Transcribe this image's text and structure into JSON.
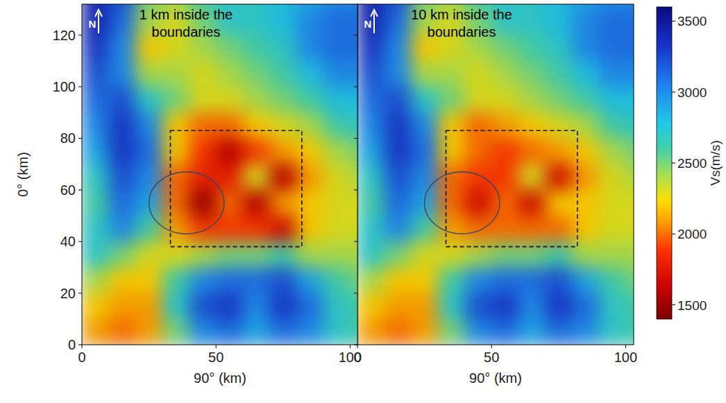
{
  "chart_data": [
    {
      "type": "heatmap",
      "title": "1 km inside the boundaries",
      "xlabel": "90° (km)",
      "ylabel": "0° (km)",
      "north_label": "N",
      "xlim": [
        0,
        103
      ],
      "ylim": [
        0,
        132
      ],
      "xticks": [
        0,
        50,
        100
      ],
      "yticks": [
        0,
        20,
        40,
        60,
        80,
        100,
        120
      ],
      "x": [
        5,
        15,
        25,
        35,
        45,
        55,
        65,
        75,
        85,
        95,
        105
      ],
      "y": [
        135,
        125,
        115,
        105,
        95,
        85,
        75,
        65,
        55,
        45,
        35,
        25,
        15,
        5
      ],
      "cells": [
        [
          3400,
          3200,
          2500,
          2400,
          2600,
          2700,
          2700,
          2800,
          2900,
          3000,
          3000
        ],
        [
          3400,
          3100,
          2400,
          2300,
          2500,
          2700,
          2700,
          2800,
          3000,
          3100,
          3100
        ],
        [
          3300,
          3000,
          2200,
          2300,
          2400,
          2500,
          2600,
          2700,
          3000,
          3100,
          3100
        ],
        [
          3200,
          3000,
          2400,
          2400,
          2300,
          2400,
          2500,
          2600,
          2800,
          3000,
          3000
        ],
        [
          3100,
          3200,
          2700,
          2500,
          2300,
          2300,
          2400,
          2500,
          2600,
          2800,
          2800
        ],
        [
          3000,
          3300,
          3000,
          2200,
          2000,
          2000,
          2200,
          2300,
          2400,
          2600,
          2700
        ],
        [
          2900,
          3300,
          3100,
          2200,
          1900,
          1600,
          1900,
          2100,
          2200,
          2400,
          2500
        ],
        [
          2700,
          3200,
          3000,
          2000,
          1800,
          1800,
          2300,
          1600,
          2100,
          2300,
          2400
        ],
        [
          2600,
          3100,
          2900,
          2000,
          1500,
          2000,
          1600,
          2100,
          2200,
          2300,
          2300
        ],
        [
          2700,
          3000,
          2600,
          2100,
          1900,
          1900,
          1900,
          1700,
          2200,
          2300,
          2300
        ],
        [
          2700,
          2500,
          2300,
          2300,
          2400,
          2500,
          2500,
          2600,
          2400,
          2400,
          2400
        ],
        [
          2400,
          2200,
          2200,
          2600,
          3000,
          3100,
          3100,
          3200,
          2900,
          2600,
          2500
        ],
        [
          2200,
          2100,
          2100,
          2700,
          3200,
          3300,
          3000,
          3300,
          3100,
          2700,
          2600
        ],
        [
          2100,
          2000,
          2100,
          2500,
          3000,
          3100,
          2900,
          3100,
          3000,
          2700,
          2600
        ]
      ],
      "box": {
        "x": [
          33,
          82
        ],
        "y": [
          38,
          83
        ]
      },
      "ellipse": {
        "cx": 39,
        "cy": 55,
        "rx": 14,
        "ry": 12
      }
    },
    {
      "type": "heatmap",
      "title": "10 km inside the boundaries",
      "xlabel": "90° (km)",
      "north_label": "N",
      "tick_labels": "x",
      "xlim": [
        0,
        103
      ],
      "ylim": [
        0,
        132
      ],
      "xticks": [
        0,
        50,
        100
      ],
      "yticks": [
        0,
        20,
        40,
        60,
        80,
        100,
        120
      ],
      "x": [
        5,
        15,
        25,
        35,
        45,
        55,
        65,
        75,
        85,
        95,
        105
      ],
      "y": [
        135,
        125,
        115,
        105,
        95,
        85,
        75,
        65,
        55,
        45,
        35,
        25,
        15,
        5
      ],
      "cells": [
        [
          3400,
          3200,
          2500,
          2400,
          2600,
          2700,
          2700,
          2800,
          2900,
          3000,
          3000
        ],
        [
          3400,
          3100,
          2400,
          2300,
          2500,
          2700,
          2700,
          2800,
          3000,
          3100,
          3100
        ],
        [
          3300,
          3000,
          2200,
          2300,
          2400,
          2500,
          2600,
          2700,
          3000,
          3100,
          3100
        ],
        [
          3200,
          3000,
          2400,
          2400,
          2300,
          2400,
          2500,
          2600,
          2800,
          3000,
          3000
        ],
        [
          3100,
          3200,
          2700,
          2500,
          2300,
          2300,
          2400,
          2500,
          2600,
          2800,
          2800
        ],
        [
          3000,
          3300,
          3000,
          2200,
          2000,
          2100,
          2200,
          2300,
          2400,
          2600,
          2700
        ],
        [
          2900,
          3300,
          3100,
          2200,
          2000,
          1900,
          2000,
          2100,
          2200,
          2400,
          2500
        ],
        [
          2700,
          3200,
          3000,
          2000,
          1900,
          1900,
          2300,
          1700,
          2100,
          2300,
          2400
        ],
        [
          2600,
          3100,
          2900,
          2000,
          1700,
          2000,
          1700,
          2200,
          2200,
          2300,
          2300
        ],
        [
          2700,
          3000,
          2600,
          2100,
          2000,
          2000,
          2000,
          2000,
          2200,
          2300,
          2300
        ],
        [
          2700,
          2500,
          2300,
          2300,
          2400,
          2500,
          2500,
          2600,
          2400,
          2400,
          2400
        ],
        [
          2400,
          2200,
          2200,
          2600,
          3000,
          3100,
          3100,
          3200,
          2900,
          2600,
          2500
        ],
        [
          2200,
          2100,
          2100,
          2700,
          3200,
          3300,
          3000,
          3300,
          3100,
          2700,
          2600
        ],
        [
          2100,
          2000,
          2100,
          2500,
          3000,
          3100,
          2900,
          3100,
          3000,
          2700,
          2600
        ]
      ],
      "box": {
        "x": [
          33,
          82
        ],
        "y": [
          38,
          83
        ]
      },
      "ellipse": {
        "cx": 39,
        "cy": 55,
        "rx": 14,
        "ry": 12
      },
      "colorbar": {
        "label": "Vs(m/s)",
        "range": [
          1400,
          3600
        ],
        "ticks": [
          1500,
          2000,
          2500,
          3000,
          3500
        ]
      }
    }
  ]
}
